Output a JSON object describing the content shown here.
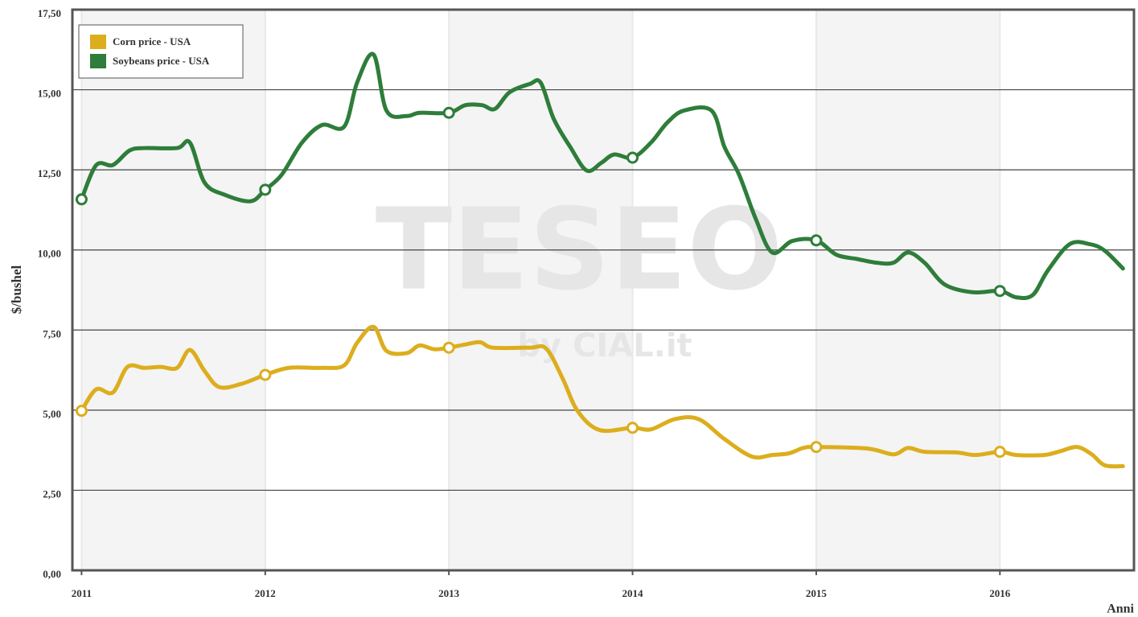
{
  "chart_data": {
    "type": "line",
    "y_label": "$/bushel",
    "x_label": "Anni",
    "watermark": "TESEO",
    "watermark_sub": "by CIAL.it",
    "xlim": [
      2010.95,
      2016.73
    ],
    "xticks": [
      2011,
      2012,
      2013,
      2014,
      2015,
      2016
    ],
    "ylim": [
      0,
      17.5
    ],
    "yticks": [
      {
        "value": 0,
        "label": "0,00"
      },
      {
        "value": 2.5,
        "label": "2,50"
      },
      {
        "value": 5,
        "label": "5,00"
      },
      {
        "value": 7.5,
        "label": "7,50"
      },
      {
        "value": 10,
        "label": "10,00"
      },
      {
        "value": 12.5,
        "label": "12,50"
      },
      {
        "value": 15,
        "label": "15,00"
      },
      {
        "value": 17.5,
        "label": "17,50"
      }
    ],
    "grid": true,
    "legend": "top-left",
    "series": [
      {
        "name": "Corn price - USA",
        "color": "#dcae1d",
        "x": [
          2011,
          2011.08,
          2011.17,
          2011.25,
          2011.34,
          2011.43,
          2011.52,
          2011.59,
          2011.67,
          2011.75,
          2011.87,
          2012,
          2012.13,
          2012.31,
          2012.43,
          2012.5,
          2012.59,
          2012.66,
          2012.77,
          2012.84,
          2012.92,
          2013,
          2013.09,
          2013.17,
          2013.24,
          2013.44,
          2013.53,
          2013.62,
          2013.7,
          2013.82,
          2014,
          2014.1,
          2014.23,
          2014.36,
          2014.5,
          2014.65,
          2014.76,
          2014.85,
          2014.93,
          2015,
          2015.28,
          2015.42,
          2015.5,
          2015.59,
          2015.76,
          2015.87,
          2016,
          2016.09,
          2016.24,
          2016.33,
          2016.42,
          2016.5,
          2016.57,
          2016.67
        ],
        "values": [
          4.98,
          5.65,
          5.55,
          6.35,
          6.32,
          6.35,
          6.32,
          6.88,
          6.22,
          5.72,
          5.82,
          6.1,
          6.32,
          6.32,
          6.4,
          7.1,
          7.6,
          6.85,
          6.78,
          7.02,
          6.9,
          6.95,
          7.05,
          7.12,
          6.95,
          6.95,
          6.92,
          5.98,
          4.98,
          4.38,
          4.45,
          4.4,
          4.72,
          4.72,
          4.1,
          3.55,
          3.6,
          3.65,
          3.82,
          3.85,
          3.8,
          3.62,
          3.82,
          3.7,
          3.68,
          3.6,
          3.7,
          3.6,
          3.6,
          3.72,
          3.85,
          3.62,
          3.28,
          3.25
        ]
      },
      {
        "name": "Soybeans price - USA",
        "color": "#2e7d3a",
        "x": [
          2011,
          2011.08,
          2011.17,
          2011.26,
          2011.34,
          2011.52,
          2011.59,
          2011.67,
          2011.78,
          2011.92,
          2012,
          2012.09,
          2012.2,
          2012.31,
          2012.43,
          2012.5,
          2012.59,
          2012.66,
          2012.77,
          2012.84,
          2013,
          2013.09,
          2013.18,
          2013.25,
          2013.33,
          2013.44,
          2013.5,
          2013.57,
          2013.66,
          2013.75,
          2013.83,
          2013.9,
          2014,
          2014.1,
          2014.19,
          2014.28,
          2014.43,
          2014.5,
          2014.58,
          2014.67,
          2014.76,
          2014.87,
          2015,
          2015.11,
          2015.22,
          2015.33,
          2015.42,
          2015.5,
          2015.59,
          2015.7,
          2015.85,
          2016,
          2016.09,
          2016.18,
          2016.26,
          2016.38,
          2016.49,
          2016.57,
          2016.67
        ],
        "values": [
          11.58,
          12.65,
          12.65,
          13.1,
          13.18,
          13.18,
          13.35,
          12.1,
          11.72,
          11.52,
          11.88,
          12.35,
          13.35,
          13.9,
          13.85,
          15.22,
          16.1,
          14.35,
          14.18,
          14.28,
          14.28,
          14.52,
          14.52,
          14.4,
          14.92,
          15.18,
          15.22,
          14.1,
          13.22,
          12.48,
          12.72,
          12.98,
          12.88,
          13.35,
          13.98,
          14.35,
          14.35,
          13.22,
          12.35,
          10.98,
          9.92,
          10.28,
          10.3,
          9.85,
          9.72,
          9.6,
          9.6,
          9.92,
          9.6,
          8.92,
          8.68,
          8.72,
          8.52,
          8.6,
          9.35,
          10.18,
          10.18,
          9.98,
          9.42
        ]
      }
    ]
  }
}
